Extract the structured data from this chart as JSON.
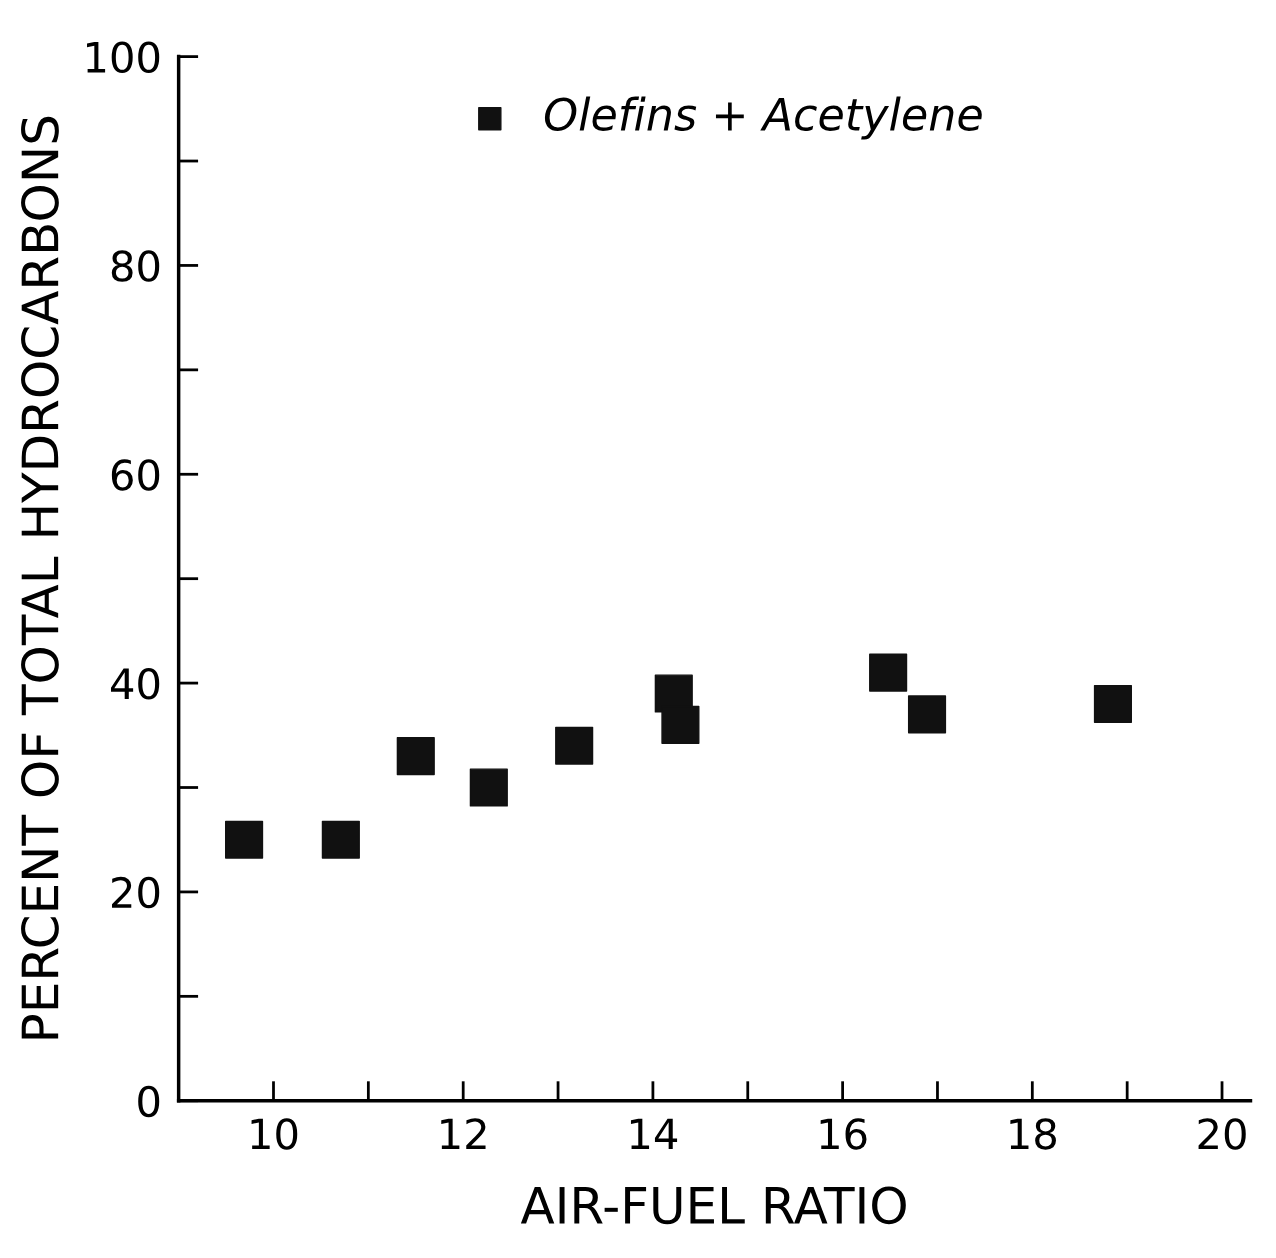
{
  "chart_data": {
    "type": "scatter",
    "xlabel": "AIR-FUEL RATIO",
    "ylabel": "PERCENT OF TOTAL HYDROCARBONS",
    "x": [
      9.69,
      10.71,
      11.5,
      12.27,
      13.17,
      14.22,
      14.29,
      16.48,
      16.89,
      18.85
    ],
    "series": [
      {
        "name": "Olefins + Acetylene",
        "color": "#111111",
        "values": [
          25,
          25,
          33,
          30,
          34,
          39,
          36,
          41,
          37,
          38
        ]
      }
    ],
    "marker": "square",
    "legend": "top",
    "grid": false,
    "xlim": [
      9,
      20.3
    ],
    "ylim": [
      0,
      100
    ],
    "xticks": [
      10,
      12,
      14,
      16,
      18,
      20
    ],
    "yticks": [
      0,
      20,
      40,
      60,
      80,
      100
    ]
  }
}
